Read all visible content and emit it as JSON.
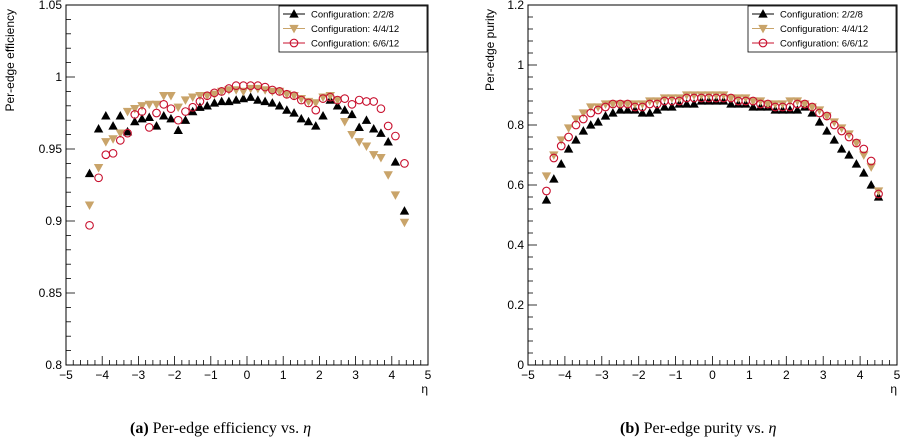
{
  "chart_data": [
    {
      "type": "scatter",
      "xlabel": "η",
      "ylabel": "Per-edge efficiency",
      "xlim": [
        -5,
        5
      ],
      "ylim": [
        0.8,
        1.05
      ],
      "x_ticks": [
        "−5",
        "−4",
        "−3",
        "−2",
        "−1",
        "0",
        "1",
        "2",
        "3",
        "4",
        "5"
      ],
      "y_ticks": [
        "0.8",
        "0.85",
        "0.9",
        "0.95",
        "1",
        "1.05"
      ],
      "y_tick_values": [
        0.8,
        0.85,
        0.9,
        0.95,
        1.0,
        1.05
      ],
      "legend_position": "top-right",
      "caption_label": "(a)",
      "caption_text": " Per-edge efficiency vs. ",
      "caption_symbol": "η",
      "x": [
        -4.35,
        -4.1,
        -3.9,
        -3.7,
        -3.5,
        -3.3,
        -3.1,
        -2.9,
        -2.7,
        -2.5,
        -2.3,
        -2.1,
        -1.9,
        -1.7,
        -1.5,
        -1.3,
        -1.1,
        -0.9,
        -0.7,
        -0.5,
        -0.3,
        -0.1,
        0.1,
        0.3,
        0.5,
        0.7,
        0.9,
        1.1,
        1.3,
        1.5,
        1.7,
        1.9,
        2.1,
        2.3,
        2.5,
        2.7,
        2.9,
        3.1,
        3.3,
        3.5,
        3.7,
        3.9,
        4.1,
        4.35
      ],
      "series": [
        {
          "name": "Configuration: 2/2/8",
          "color": "#000000",
          "marker": "triangle-up",
          "values": [
            0.933,
            0.964,
            0.973,
            0.966,
            0.973,
            0.962,
            0.969,
            0.971,
            0.972,
            0.966,
            0.973,
            0.971,
            0.963,
            0.97,
            0.976,
            0.979,
            0.98,
            0.982,
            0.983,
            0.983,
            0.984,
            0.985,
            0.986,
            0.984,
            0.983,
            0.982,
            0.98,
            0.977,
            0.975,
            0.971,
            0.969,
            0.966,
            0.973,
            0.984,
            0.98,
            0.977,
            0.974,
            0.965,
            0.97,
            0.964,
            0.961,
            0.955,
            0.941,
            0.907
          ]
        },
        {
          "name": "Configuration: 4/4/12",
          "color": "#c9a46a",
          "marker": "triangle-down",
          "values": [
            0.911,
            0.937,
            0.955,
            0.957,
            0.961,
            0.976,
            0.978,
            0.98,
            0.981,
            0.981,
            0.987,
            0.987,
            0.979,
            0.984,
            0.986,
            0.987,
            0.987,
            0.988,
            0.99,
            0.991,
            0.991,
            0.99,
            0.992,
            0.992,
            0.991,
            0.99,
            0.99,
            0.988,
            0.987,
            0.985,
            0.983,
            0.982,
            0.986,
            0.987,
            0.984,
            0.969,
            0.96,
            0.955,
            0.952,
            0.946,
            0.944,
            0.932,
            0.918,
            0.899
          ]
        },
        {
          "name": "Configuration: 6/6/12",
          "color": "#c8102e",
          "marker": "circle-open",
          "values": [
            0.897,
            0.93,
            0.946,
            0.947,
            0.956,
            0.961,
            0.974,
            0.976,
            0.965,
            0.975,
            0.981,
            0.978,
            0.97,
            0.976,
            0.979,
            0.983,
            0.987,
            0.989,
            0.99,
            0.992,
            0.994,
            0.994,
            0.994,
            0.994,
            0.993,
            0.991,
            0.99,
            0.988,
            0.987,
            0.984,
            0.982,
            0.977,
            0.985,
            0.986,
            0.984,
            0.985,
            0.981,
            0.984,
            0.983,
            0.983,
            0.978,
            0.966,
            0.959,
            0.94
          ]
        }
      ]
    },
    {
      "type": "scatter",
      "xlabel": "η",
      "ylabel": "Per-edge purity",
      "xlim": [
        -5,
        5
      ],
      "ylim": [
        0,
        1.2
      ],
      "x_ticks": [
        "−5",
        "−4",
        "−3",
        "−2",
        "−1",
        "0",
        "1",
        "2",
        "3",
        "4",
        "5"
      ],
      "y_ticks": [
        "0",
        "0.2",
        "0.4",
        "0.6",
        "0.8",
        "1",
        "1.2"
      ],
      "y_tick_values": [
        0,
        0.2,
        0.4,
        0.6,
        0.8,
        1.0,
        1.2
      ],
      "legend_position": "top-right",
      "caption_label": "(b)",
      "caption_text": " Per-edge purity vs. ",
      "caption_symbol": "η",
      "x": [
        -4.5,
        -4.3,
        -4.1,
        -3.9,
        -3.7,
        -3.5,
        -3.3,
        -3.1,
        -2.9,
        -2.7,
        -2.5,
        -2.3,
        -2.1,
        -1.9,
        -1.7,
        -1.5,
        -1.3,
        -1.1,
        -0.9,
        -0.7,
        -0.5,
        -0.3,
        -0.1,
        0.1,
        0.3,
        0.5,
        0.7,
        0.9,
        1.1,
        1.3,
        1.5,
        1.7,
        1.9,
        2.1,
        2.3,
        2.5,
        2.7,
        2.9,
        3.1,
        3.3,
        3.5,
        3.7,
        3.9,
        4.1,
        4.3,
        4.5
      ],
      "series": [
        {
          "name": "Configuration: 2/2/8",
          "color": "#000000",
          "marker": "triangle-up",
          "values": [
            0.55,
            0.62,
            0.67,
            0.72,
            0.75,
            0.78,
            0.8,
            0.81,
            0.83,
            0.84,
            0.85,
            0.85,
            0.85,
            0.84,
            0.84,
            0.85,
            0.86,
            0.86,
            0.87,
            0.87,
            0.87,
            0.88,
            0.88,
            0.88,
            0.88,
            0.87,
            0.87,
            0.87,
            0.86,
            0.86,
            0.86,
            0.85,
            0.85,
            0.85,
            0.85,
            0.86,
            0.84,
            0.81,
            0.78,
            0.75,
            0.72,
            0.7,
            0.67,
            0.64,
            0.6,
            0.56
          ]
        },
        {
          "name": "Configuration: 4/4/12",
          "color": "#c9a46a",
          "marker": "triangle-down",
          "values": [
            0.63,
            0.7,
            0.75,
            0.79,
            0.82,
            0.84,
            0.86,
            0.86,
            0.87,
            0.87,
            0.87,
            0.87,
            0.87,
            0.87,
            0.88,
            0.88,
            0.89,
            0.89,
            0.89,
            0.9,
            0.9,
            0.9,
            0.9,
            0.9,
            0.9,
            0.89,
            0.89,
            0.89,
            0.88,
            0.88,
            0.87,
            0.87,
            0.87,
            0.88,
            0.88,
            0.87,
            0.86,
            0.85,
            0.83,
            0.81,
            0.79,
            0.77,
            0.74,
            0.7,
            0.66,
            0.58
          ]
        },
        {
          "name": "Configuration: 6/6/12",
          "color": "#c8102e",
          "marker": "circle-open",
          "values": [
            0.58,
            0.69,
            0.73,
            0.76,
            0.8,
            0.82,
            0.84,
            0.85,
            0.86,
            0.87,
            0.87,
            0.87,
            0.86,
            0.86,
            0.87,
            0.87,
            0.88,
            0.88,
            0.88,
            0.89,
            0.89,
            0.89,
            0.89,
            0.89,
            0.89,
            0.89,
            0.88,
            0.88,
            0.88,
            0.87,
            0.87,
            0.86,
            0.86,
            0.86,
            0.87,
            0.87,
            0.86,
            0.84,
            0.83,
            0.8,
            0.78,
            0.76,
            0.74,
            0.72,
            0.68,
            0.57
          ]
        }
      ]
    }
  ]
}
